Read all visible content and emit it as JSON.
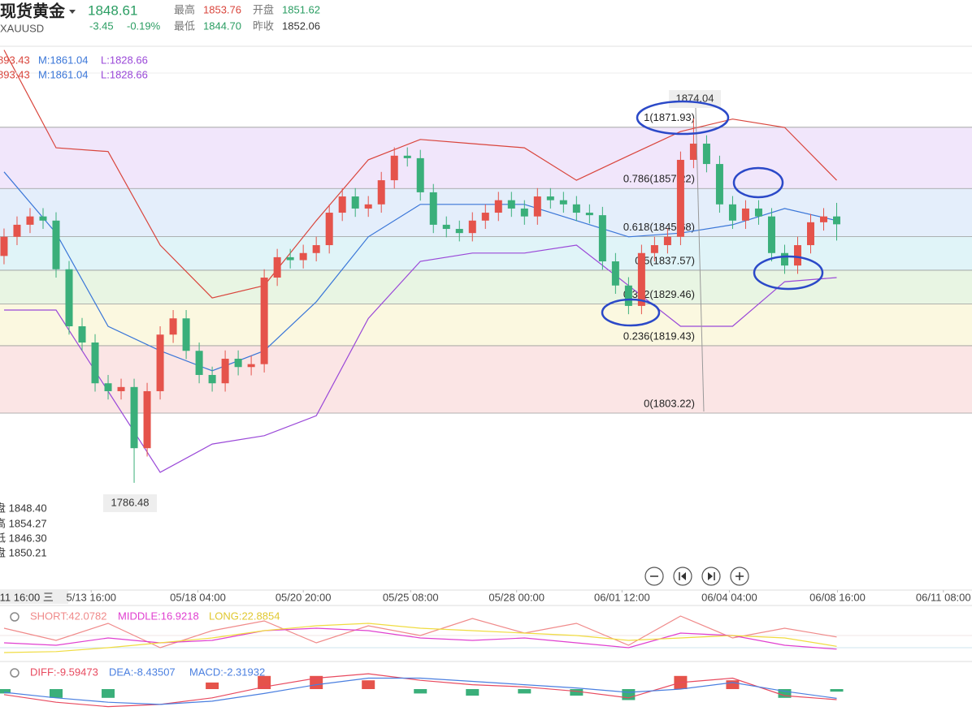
{
  "header": {
    "name": "现货黄金",
    "symbol": "XAUUSD",
    "price": "1848.61",
    "change": "-3.45",
    "change_pct": "-0.19%",
    "stats": [
      {
        "label": "最高",
        "value": "1853.76"
      },
      {
        "label": "开盘",
        "value": "1851.62"
      },
      {
        "label": "最低",
        "value": "1844.70"
      },
      {
        "label": "昨收",
        "value": "1852.06"
      }
    ]
  },
  "chart_data": [
    {
      "type": "candlestick",
      "legend": [
        [
          "893.43",
          "M:1861.04",
          "L:1828.66"
        ],
        [
          "893.43",
          "M:1861.04",
          "L:1828.66"
        ]
      ],
      "ohlc_labels": [
        "盘 1848.40",
        "高 1854.27",
        "低 1846.30",
        "盘 1850.21"
      ],
      "crosshair_label": "/11 16:00 三",
      "xlim": [
        -0.31,
        74.4
      ],
      "ylim": [
        1760.7,
        1891.4
      ],
      "xticks": [
        {
          "value": 6.7,
          "label": "5/13 16:00"
        },
        {
          "value": 14.9,
          "label": "05/18 04:00"
        },
        {
          "value": 23,
          "label": "05/20 20:00"
        },
        {
          "value": 31.25,
          "label": "05/25 08:00"
        },
        {
          "value": 39.4,
          "label": "05/28 00:00"
        },
        {
          "value": 47.5,
          "label": "06/01 12:00"
        },
        {
          "value": 55.75,
          "label": "06/04 04:00"
        },
        {
          "value": 64.06,
          "label": "06/08 16:00"
        },
        {
          "value": 72.2,
          "label": "06/11 08:00"
        }
      ],
      "up_color": "#e5534b",
      "down_color": "#3aaf7a",
      "opens": [
        1841.0,
        1845.6,
        1848.5,
        1850.5,
        1849.5,
        1837.8,
        1824.1,
        1820.2,
        1810.4,
        1808.5,
        1809.5,
        1794.8,
        1808.5,
        1822.1,
        1826.0,
        1818.2,
        1812.4,
        1810.4,
        1816.3,
        1814.3,
        1815.0,
        1835.8,
        1840.7,
        1840.0,
        1841.7,
        1843.6,
        1851.4,
        1855.3,
        1852.4,
        1853.4,
        1859.2,
        1865.1,
        1864.5,
        1856.3,
        1848.5,
        1847.5,
        1846.5,
        1849.5,
        1851.4,
        1854.4,
        1852.4,
        1850.5,
        1855.3,
        1854.4,
        1853.4,
        1851.4,
        1850.8,
        1839.7,
        1833.9,
        1829.0,
        1841.7,
        1843.6,
        1845.6,
        1864.1,
        1868.0,
        1863.1,
        1853.4,
        1849.5,
        1852.4,
        1850.5,
        1841.7,
        1838.7,
        1843.6,
        1849.1,
        1850.5
      ],
      "highs": [
        1847.6,
        1850.5,
        1852.5,
        1852.5,
        1851.5,
        1839.8,
        1826.1,
        1822.2,
        1812.4,
        1811.5,
        1811.5,
        1810.5,
        1824.1,
        1828.0,
        1828.0,
        1820.2,
        1814.4,
        1818.3,
        1818.3,
        1817.0,
        1837.8,
        1842.7,
        1842.7,
        1843.7,
        1845.6,
        1853.4,
        1857.3,
        1857.3,
        1855.4,
        1861.2,
        1867.1,
        1867.1,
        1866.5,
        1858.3,
        1850.5,
        1849.5,
        1851.5,
        1853.4,
        1856.4,
        1856.4,
        1854.4,
        1857.3,
        1857.3,
        1856.4,
        1855.4,
        1853.4,
        1852.8,
        1841.7,
        1835.9,
        1843.7,
        1845.6,
        1847.6,
        1866.1,
        1874.04,
        1870.0,
        1865.1,
        1855.4,
        1854.4,
        1854.4,
        1852.5,
        1843.7,
        1845.6,
        1851.1,
        1852.5,
        1853.76
      ],
      "lows": [
        1839.0,
        1843.6,
        1846.5,
        1847.5,
        1835.8,
        1822.1,
        1818.2,
        1808.4,
        1806.5,
        1806.5,
        1786.48,
        1792.8,
        1806.5,
        1820.1,
        1816.2,
        1810.4,
        1808.4,
        1808.4,
        1812.3,
        1812.3,
        1813.0,
        1833.8,
        1838.0,
        1838.0,
        1839.7,
        1841.6,
        1849.4,
        1850.4,
        1850.4,
        1851.4,
        1857.2,
        1862.5,
        1854.3,
        1846.5,
        1845.5,
        1844.5,
        1844.5,
        1847.5,
        1849.4,
        1850.4,
        1848.5,
        1848.5,
        1852.4,
        1851.4,
        1849.4,
        1848.8,
        1837.7,
        1831.9,
        1827.0,
        1827.0,
        1839.7,
        1841.6,
        1843.6,
        1862.1,
        1861.1,
        1851.4,
        1847.5,
        1847.5,
        1848.5,
        1839.7,
        1836.7,
        1836.7,
        1841.6,
        1847.1,
        1844.7
      ],
      "closes": [
        1845.6,
        1848.5,
        1850.5,
        1849.5,
        1837.8,
        1824.1,
        1820.2,
        1810.4,
        1808.5,
        1809.5,
        1794.8,
        1808.5,
        1822.1,
        1826.0,
        1818.2,
        1812.4,
        1810.4,
        1816.3,
        1814.3,
        1815.0,
        1835.8,
        1840.7,
        1840.0,
        1841.7,
        1843.6,
        1851.4,
        1855.3,
        1852.4,
        1853.4,
        1859.2,
        1865.1,
        1864.5,
        1856.3,
        1848.5,
        1847.5,
        1846.5,
        1849.5,
        1851.4,
        1854.4,
        1852.4,
        1850.5,
        1855.3,
        1854.4,
        1853.4,
        1851.4,
        1850.8,
        1839.7,
        1833.9,
        1829.0,
        1841.7,
        1843.6,
        1845.6,
        1864.1,
        1868.0,
        1863.1,
        1853.4,
        1849.5,
        1852.4,
        1850.5,
        1841.7,
        1838.7,
        1843.6,
        1849.1,
        1850.5,
        1848.61
      ],
      "bands": {
        "x": [
          0,
          4,
          8,
          12,
          16,
          20,
          24,
          28,
          32,
          36,
          40,
          44,
          48,
          52,
          56,
          60,
          64
        ],
        "series": [
          {
            "color": "#d9453c",
            "values": [
              1890.5,
              1867.0,
              1866.1,
              1843.6,
              1830.9,
              1833.9,
              1849.5,
              1864.1,
              1869.0,
              1868.0,
              1867.0,
              1859.2,
              1865.1,
              1870.9,
              1873.9,
              1871.9,
              1859.2
            ]
          },
          {
            "color": "#3a76d8",
            "values": [
              1861.2,
              1846.5,
              1824.1,
              1818.2,
              1813.4,
              1818.2,
              1830.0,
              1845.6,
              1853.4,
              1853.4,
              1853.4,
              1849.5,
              1845.6,
              1846.5,
              1848.5,
              1852.4,
              1849.5
            ]
          },
          {
            "color": "#9a48d8",
            "values": [
              1828.0,
              1828.0,
              1808.5,
              1789.0,
              1795.8,
              1797.8,
              1802.6,
              1826.0,
              1839.7,
              1841.7,
              1841.7,
              1843.6,
              1833.9,
              1824.1,
              1824.1,
              1834.8,
              1835.8
            ]
          }
        ]
      },
      "fib_levels": [
        {
          "value": 1871.93,
          "label": "1(1871.93)"
        },
        {
          "value": 1857.22,
          "label": "0.786(1857.22)"
        },
        {
          "value": 1845.68,
          "label": "0.618(1845.68)"
        },
        {
          "value": 1837.57,
          "label": "0.5(1837.57)"
        },
        {
          "value": 1829.46,
          "label": "0.382(1829.46)"
        },
        {
          "value": 1819.43,
          "label": "0.236(1819.43)"
        },
        {
          "value": 1803.22,
          "label": "0(1803.22)"
        }
      ],
      "fib_colors": [
        "#f1e6fb",
        "#e4eefb",
        "#e0f4f8",
        "#e8f5e3",
        "#fbf8e0",
        "#fbe5e5"
      ]
    },
    {
      "type": "line",
      "legend": [
        "SHORT:42.0782",
        "MIDDLE:16.9218",
        "LONG:22.8854"
      ],
      "xlim": [
        -0.31,
        74.4
      ],
      "ylim": [
        0,
        100
      ],
      "x": [
        0,
        4,
        8,
        12,
        16,
        20,
        24,
        28,
        32,
        36,
        40,
        44,
        48,
        52,
        56,
        60,
        64
      ],
      "series": [
        {
          "color": "#f08a8a",
          "values": [
            60,
            35,
            70,
            20,
            55,
            75,
            30,
            65,
            45,
            80,
            50,
            70,
            25,
            85,
            40,
            60,
            42.0782
          ]
        },
        {
          "color": "#e040d0",
          "values": [
            30,
            25,
            40,
            30,
            35,
            55,
            60,
            55,
            40,
            35,
            40,
            30,
            20,
            50,
            45,
            25,
            16.9218
          ]
        },
        {
          "color": "#f0dc40",
          "values": [
            10,
            12,
            20,
            30,
            40,
            55,
            65,
            70,
            60,
            55,
            50,
            45,
            35,
            40,
            45,
            40,
            22.8854
          ]
        }
      ]
    },
    {
      "type": "macd",
      "legend": [
        "DIFF:-9.59473",
        "DEA:-8.43507",
        "MACD:-2.31932"
      ],
      "xlim": [
        -0.31,
        74.4
      ],
      "ylim": [
        -20,
        20
      ],
      "x": [
        0,
        4,
        8,
        12,
        16,
        20,
        24,
        28,
        32,
        36,
        40,
        44,
        48,
        52,
        56,
        60,
        64
      ],
      "series": [
        {
          "color": "#e84a5f",
          "values": [
            -5,
            -12,
            -16,
            -14,
            -8,
            2,
            10,
            14,
            8,
            4,
            2,
            -2,
            -8,
            6,
            10,
            -6,
            -9.59473
          ]
        },
        {
          "color": "#4a7fe0",
          "values": [
            -3,
            -8,
            -12,
            -14,
            -11,
            -4,
            4,
            10,
            10,
            7,
            4,
            1,
            -3,
            0,
            6,
            -2,
            -8.43507
          ]
        }
      ],
      "bars": {
        "values": [
          -4,
          -8,
          -8,
          0,
          6,
          12,
          12,
          8,
          -4,
          -6,
          -4,
          -6,
          -10,
          12,
          8,
          -8,
          -2.31932
        ],
        "up_color": "#e5534b",
        "down_color": "#3aaf7a"
      }
    }
  ]
}
